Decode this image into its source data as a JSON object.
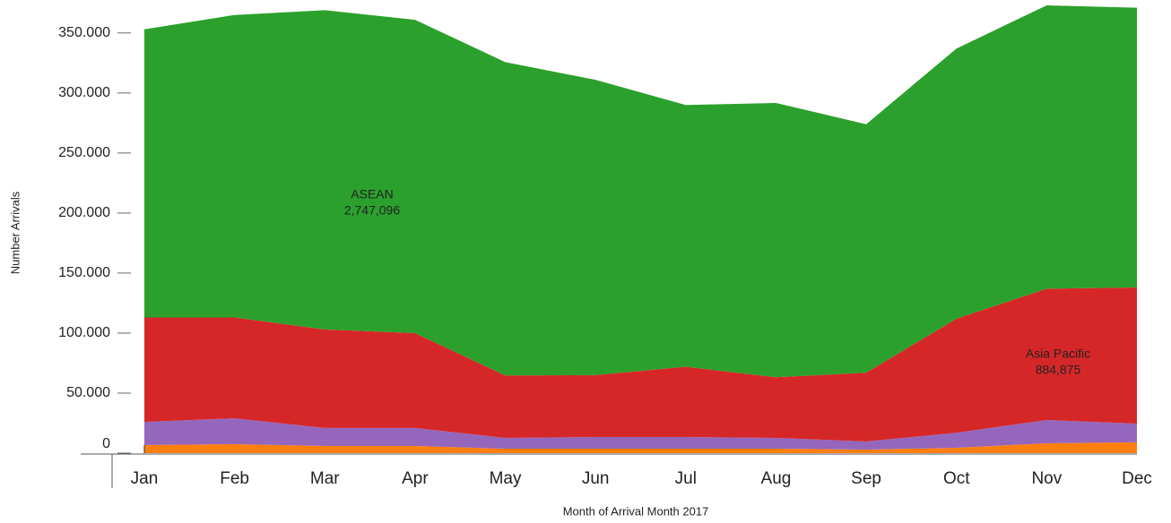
{
  "chart_data": {
    "type": "stacked_area",
    "x_label": "Month of Arrival Month 2017",
    "y_label": "Number Arrivals",
    "categories": [
      "Jan",
      "Feb",
      "Mar",
      "Apr",
      "May",
      "Jun",
      "Jul",
      "Aug",
      "Sep",
      "Oct",
      "Nov",
      "Dec"
    ],
    "series": [
      {
        "color": "#ff7f0e",
        "values": [
          6700,
          7500,
          6000,
          6000,
          3700,
          3700,
          3700,
          3700,
          3000,
          4500,
          8200,
          9000
        ]
      },
      {
        "color": "#9467bd",
        "values": [
          19300,
          21500,
          15000,
          15000,
          9000,
          9700,
          9700,
          9000,
          6700,
          12500,
          19400,
          15600
        ]
      },
      {
        "name": "Asia Pacific",
        "total_label": "884,875",
        "color": "#d62728",
        "values": [
          87000,
          84000,
          82000,
          79000,
          52000,
          51600,
          58600,
          50500,
          57300,
          95000,
          109400,
          113400
        ]
      },
      {
        "name": "ASEAN",
        "total_label": "2,747,096",
        "color": "#2ca02c",
        "values": [
          240000,
          252000,
          266000,
          261000,
          261000,
          246000,
          218000,
          228500,
          207000,
          225000,
          236000,
          233000
        ]
      }
    ],
    "ylim": [
      0,
      370000
    ],
    "yticks": [
      0,
      {
        "value": 50000,
        "label": "50.000"
      },
      {
        "value": 100000,
        "label": "100.000"
      },
      {
        "value": 150000,
        "label": "150.000"
      },
      {
        "value": 200000,
        "label": "200.000"
      },
      {
        "value": 250000,
        "label": "250.000"
      },
      {
        "value": 300000,
        "label": "300.000"
      },
      {
        "value": 350000,
        "label": "350.000"
      }
    ]
  }
}
